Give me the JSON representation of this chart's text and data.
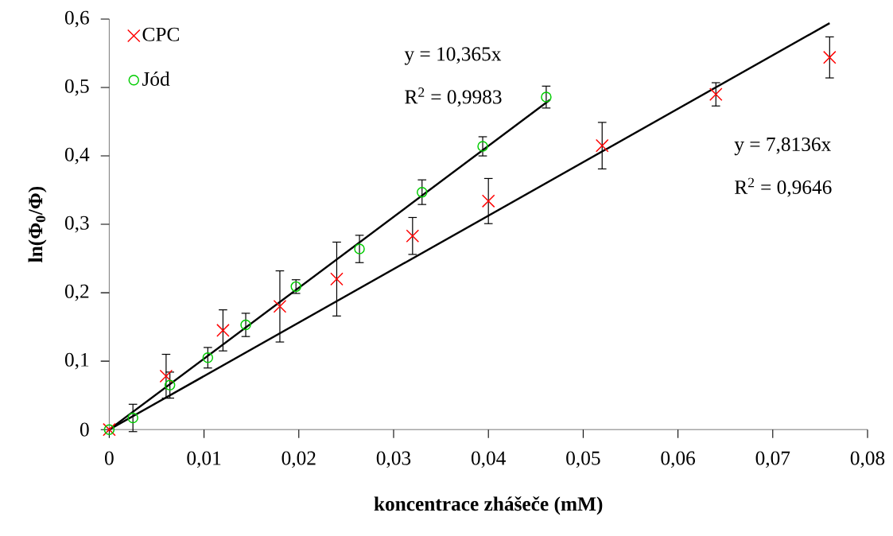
{
  "chart_data": {
    "type": "scatter",
    "xlabel": "koncentrace zhášeče (mM)",
    "ylabel": "ln(Φ$_{0}$/Φ)",
    "xlim": [
      0,
      0.08
    ],
    "ylim": [
      0,
      0.6
    ],
    "xticks": [
      0,
      {
        "value": 0.01,
        "label": "0,01"
      },
      {
        "value": 0.02,
        "label": "0,02"
      },
      {
        "value": 0.03,
        "label": "0,03"
      },
      {
        "value": 0.04,
        "label": "0,04"
      },
      {
        "value": 0.05,
        "label": "0,05"
      },
      {
        "value": 0.06,
        "label": "0,06"
      },
      {
        "value": 0.07,
        "label": "0,07"
      },
      {
        "value": 0.08,
        "label": "0,08"
      }
    ],
    "yticks": [
      0,
      {
        "value": 0.1,
        "label": "0,1"
      },
      {
        "value": 0.2,
        "label": "0,2"
      },
      {
        "value": 0.3,
        "label": "0,3"
      },
      {
        "value": 0.4,
        "label": "0,4"
      },
      {
        "value": 0.5,
        "label": "0,5"
      },
      {
        "value": 0.6,
        "label": "0,6"
      }
    ],
    "grid": false,
    "legend": "top left",
    "series": [
      {
        "name": "CPC",
        "marker": "cross",
        "color": "#ff0000",
        "x": [
          0,
          0.006,
          0.012,
          0.018,
          0.024,
          0.032,
          0.04,
          0.052,
          0.064,
          0.076
        ],
        "values": [
          0,
          0.078,
          0.145,
          0.18,
          0.22,
          0.283,
          0.334,
          0.415,
          0.49,
          0.544
        ],
        "errors": [
          null,
          0.032,
          0.03,
          0.052,
          0.054,
          0.027,
          0.033,
          0.034,
          0.017,
          0.03
        ]
      },
      {
        "name": "Jód",
        "marker": "circle",
        "color": "#00cc00",
        "x": [
          0,
          0.0025,
          0.0064,
          0.0104,
          0.0144,
          0.0197,
          0.0264,
          0.033,
          0.0394,
          0.0461
        ],
        "values": [
          0,
          0.017,
          0.065,
          0.105,
          0.153,
          0.209,
          0.264,
          0.347,
          0.414,
          0.486
        ],
        "errors": [
          null,
          0.02,
          0.019,
          0.015,
          0.017,
          0.01,
          0.02,
          0.018,
          0.014,
          0.016
        ]
      },
      {
        "type": "line",
        "color": "#000000",
        "x": [
          0,
          0.0465
        ],
        "values": [
          0,
          0.482
        ]
      },
      {
        "type": "line",
        "color": "#000000",
        "x": [
          0,
          0.076
        ],
        "values": [
          0,
          0.594
        ]
      }
    ],
    "annotations": [
      "y = 10,365x",
      "R$^{2}$ = 0,9983",
      "y = 7,8136x",
      "R$^{2}$ = 0,9646"
    ]
  }
}
